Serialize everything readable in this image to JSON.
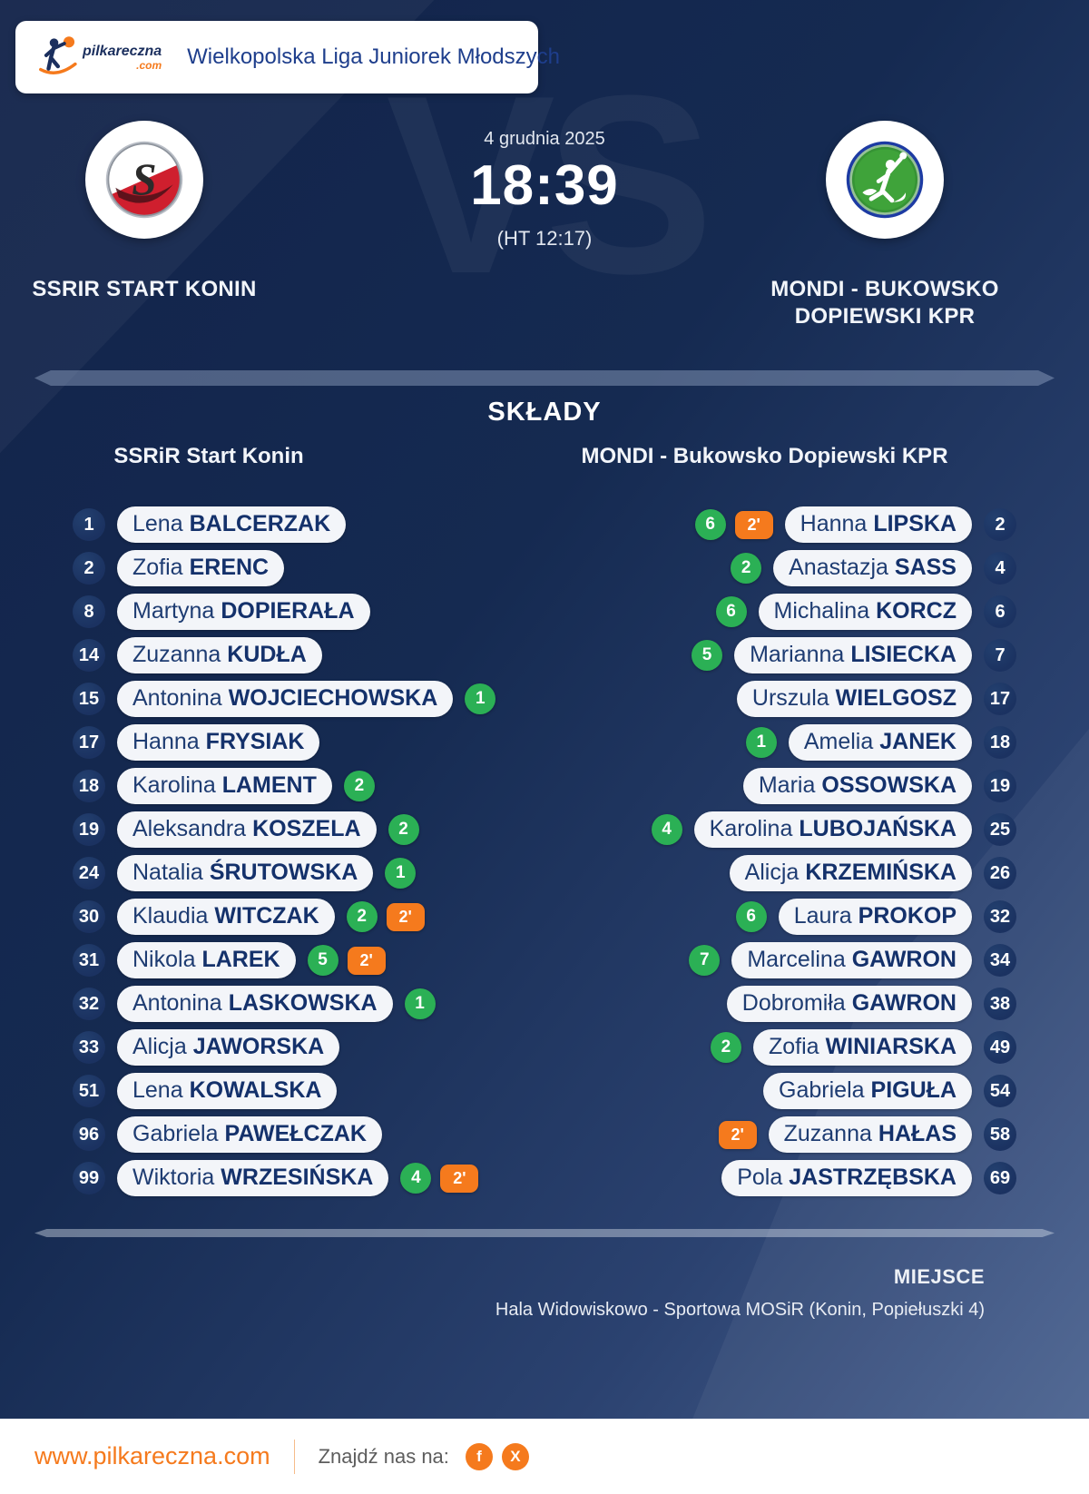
{
  "header": {
    "league": "Wielkopolska Liga Juniorek Młodszych",
    "logo": {
      "brand": "pilkareczna",
      "tld": ".com"
    }
  },
  "match": {
    "date": "4 grudnia 2025",
    "score": "18:39",
    "halftime": "(HT 12:17)",
    "vs": "VS"
  },
  "teams": {
    "home": {
      "name": "SSRIR START KONIN"
    },
    "away": {
      "name_line1": "MONDI - BUKOWSKO",
      "name_line2": "DOPIEWSKI KPR"
    }
  },
  "lineups": {
    "title": "SKŁADY",
    "two_min_label": "2'",
    "home": {
      "header": "SSRiR Start Konin",
      "players": [
        {
          "num": "1",
          "first": "Lena",
          "last": "BALCERZAK",
          "goals": null,
          "two_min": false
        },
        {
          "num": "2",
          "first": "Zofia",
          "last": "ERENC",
          "goals": null,
          "two_min": false
        },
        {
          "num": "8",
          "first": "Martyna",
          "last": "DOPIERAŁA",
          "goals": null,
          "two_min": false
        },
        {
          "num": "14",
          "first": "Zuzanna",
          "last": "KUDŁA",
          "goals": null,
          "two_min": false
        },
        {
          "num": "15",
          "first": "Antonina",
          "last": "WOJCIECHOWSKA",
          "goals": 1,
          "two_min": false
        },
        {
          "num": "17",
          "first": "Hanna",
          "last": "FRYSIAK",
          "goals": null,
          "two_min": false
        },
        {
          "num": "18",
          "first": "Karolina",
          "last": "LAMENT",
          "goals": 2,
          "two_min": false
        },
        {
          "num": "19",
          "first": "Aleksandra",
          "last": "KOSZELA",
          "goals": 2,
          "two_min": false
        },
        {
          "num": "24",
          "first": "Natalia",
          "last": "ŚRUTOWSKA",
          "goals": 1,
          "two_min": false
        },
        {
          "num": "30",
          "first": "Klaudia",
          "last": "WITCZAK",
          "goals": 2,
          "two_min": true
        },
        {
          "num": "31",
          "first": "Nikola",
          "last": "LAREK",
          "goals": 5,
          "two_min": true
        },
        {
          "num": "32",
          "first": "Antonina",
          "last": "LASKOWSKA",
          "goals": 1,
          "two_min": false
        },
        {
          "num": "33",
          "first": "Alicja",
          "last": "JAWORSKA",
          "goals": null,
          "two_min": false
        },
        {
          "num": "51",
          "first": "Lena",
          "last": "KOWALSKA",
          "goals": null,
          "two_min": false
        },
        {
          "num": "96",
          "first": "Gabriela",
          "last": "PAWEŁCZAK",
          "goals": null,
          "two_min": false
        },
        {
          "num": "99",
          "first": "Wiktoria",
          "last": "WRZESIŃSKA",
          "goals": 4,
          "two_min": true
        }
      ]
    },
    "away": {
      "header": "MONDI - Bukowsko Dopiewski KPR",
      "players": [
        {
          "num": "2",
          "first": "Hanna",
          "last": "LIPSKA",
          "goals": 6,
          "two_min": true
        },
        {
          "num": "4",
          "first": "Anastazja",
          "last": "SASS",
          "goals": 2,
          "two_min": false
        },
        {
          "num": "6",
          "first": "Michalina",
          "last": "KORCZ",
          "goals": 6,
          "two_min": false
        },
        {
          "num": "7",
          "first": "Marianna",
          "last": "LISIECKA",
          "goals": 5,
          "two_min": false
        },
        {
          "num": "17",
          "first": "Urszula",
          "last": "WIELGOSZ",
          "goals": null,
          "two_min": false
        },
        {
          "num": "18",
          "first": "Amelia",
          "last": "JANEK",
          "goals": 1,
          "two_min": false
        },
        {
          "num": "19",
          "first": "Maria",
          "last": "OSSOWSKA",
          "goals": null,
          "two_min": false
        },
        {
          "num": "25",
          "first": "Karolina",
          "last": "LUBOJAŃSKA",
          "goals": 4,
          "two_min": false
        },
        {
          "num": "26",
          "first": "Alicja",
          "last": "KRZEMIŃSKA",
          "goals": null,
          "two_min": false
        },
        {
          "num": "32",
          "first": "Laura",
          "last": "PROKOP",
          "goals": 6,
          "two_min": false
        },
        {
          "num": "34",
          "first": "Marcelina",
          "last": "GAWRON",
          "goals": 7,
          "two_min": false
        },
        {
          "num": "38",
          "first": "Dobromiła",
          "last": "GAWRON",
          "goals": null,
          "two_min": false
        },
        {
          "num": "49",
          "first": "Zofia",
          "last": "WINIARSKA",
          "goals": 2,
          "two_min": false
        },
        {
          "num": "54",
          "first": "Gabriela",
          "last": "PIGUŁA",
          "goals": null,
          "two_min": false
        },
        {
          "num": "58",
          "first": "Zuzanna",
          "last": "HAŁAS",
          "goals": null,
          "two_min": true
        },
        {
          "num": "69",
          "first": "Pola",
          "last": "JASTRZĘBSKA",
          "goals": null,
          "two_min": false
        }
      ]
    }
  },
  "venue": {
    "label": "MIEJSCE",
    "name": "Hala Widowiskowo - Sportowa MOSiR (Konin, Popiełuszki 4)"
  },
  "footer": {
    "website": "www.pilkareczna.com",
    "find_us": "Znajdź nas na:",
    "facebook_label": "f",
    "x_label": "X"
  },
  "colors": {
    "goal_green": "#2bb055",
    "card_orange": "#f57a1d",
    "accent_orange": "#f57a1d",
    "navy_background": "#15294f",
    "pill_text": "#14316b"
  }
}
